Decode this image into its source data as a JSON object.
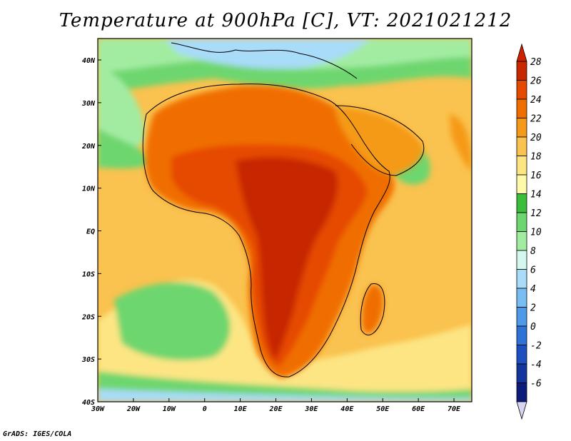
{
  "title": "Temperature at 900hPa [C], VT: 2021021212",
  "credit": "GrADS: IGES/COLA",
  "axes": {
    "lon_labels": [
      "30W",
      "20W",
      "10W",
      "0",
      "10E",
      "20E",
      "30E",
      "40E",
      "50E",
      "60E",
      "70E"
    ],
    "lat_labels": [
      "40N",
      "30N",
      "20N",
      "10N",
      "EQ",
      "10S",
      "20S",
      "30S",
      "40S"
    ]
  },
  "colorbar": {
    "labels": [
      "28",
      "26",
      "24",
      "22",
      "20",
      "18",
      "16",
      "14",
      "12",
      "10",
      "8",
      "6",
      "4",
      "2",
      "0",
      "-2",
      "-4",
      "-6"
    ],
    "colors": [
      "#c82800",
      "#e64a00",
      "#f06e00",
      "#f59a18",
      "#fac24e",
      "#fde584",
      "#fffaaa",
      "#3cbe3c",
      "#6ed66e",
      "#a2eca2",
      "#d4f7f0",
      "#a8dcf8",
      "#78bef2",
      "#4f9ae8",
      "#2e72d8",
      "#1e4fc0",
      "#14349e",
      "#0c1c78"
    ],
    "top_color": "#d02000",
    "bottom_color": "#d8d4f4"
  },
  "map_colors": {
    "ocean_tropical": "#fac24e",
    "ocean_subtrop": "#fde584",
    "ocean_cool": "#6ed66e",
    "ocean_cold": "#a2eca2",
    "ocean_polar": "#a8dcf8",
    "land_hot": "#c82800",
    "land_warm": "#e64a00",
    "land_mild": "#f06e00",
    "land_cool": "#f59a18"
  }
}
